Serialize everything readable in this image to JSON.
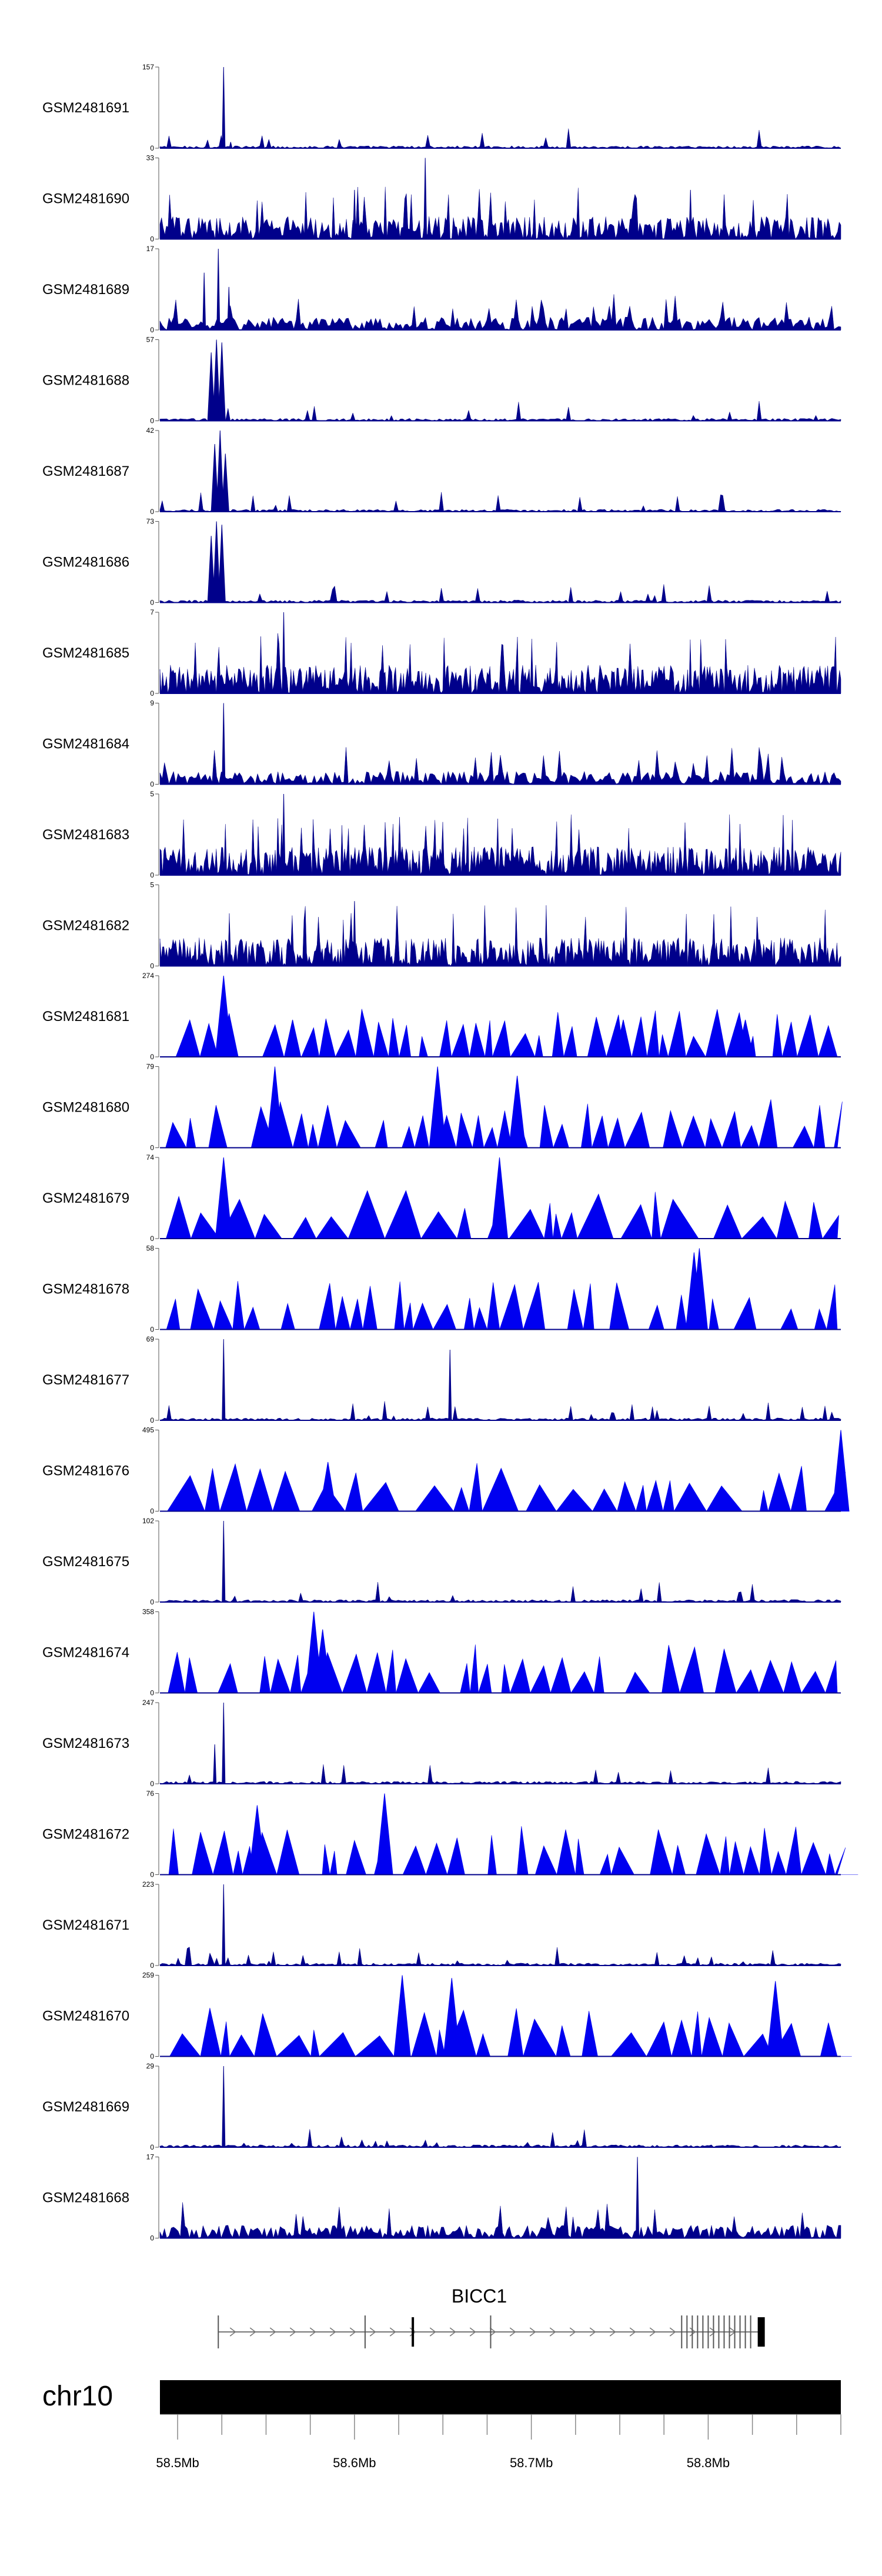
{
  "chart_data": {
    "type": "area",
    "title": "",
    "chromosome": "chr10",
    "gene": {
      "name": "BICC1",
      "strand": "+",
      "start_mb": 58.523,
      "end_mb": 58.83
    },
    "region_mb": [
      58.49,
      58.875
    ],
    "x_ticks": [
      "58.5Mb",
      "58.6Mb",
      "58.7Mb",
      "58.8Mb"
    ],
    "x_tick_values": [
      58.5,
      58.6,
      58.7,
      58.8
    ],
    "series": [
      {
        "name": "GSM2481691",
        "ymax": 157,
        "ymin": 0,
        "style": "sparse-peak",
        "peaks": [
          {
            "x": 58.526,
            "y": 157
          },
          {
            "x": 58.53,
            "y": 12
          }
        ]
      },
      {
        "name": "GSM2481690",
        "ymax": 33,
        "ymin": 0,
        "style": "dense-blocks",
        "peaks": [
          {
            "x": 58.64,
            "y": 33
          },
          {
            "x": 58.6,
            "y": 20
          },
          {
            "x": 58.79,
            "y": 20
          }
        ]
      },
      {
        "name": "GSM2481689",
        "ymax": 17,
        "ymin": 0,
        "style": "noisy",
        "peaks": [
          {
            "x": 58.523,
            "y": 17
          },
          {
            "x": 58.515,
            "y": 12
          },
          {
            "x": 58.529,
            "y": 9
          }
        ]
      },
      {
        "name": "GSM2481688",
        "ymax": 57,
        "ymin": 0,
        "style": "cluster",
        "peaks": [
          {
            "x": 58.522,
            "y": 57
          },
          {
            "x": 58.525,
            "y": 55
          },
          {
            "x": 58.519,
            "y": 48
          }
        ]
      },
      {
        "name": "GSM2481687",
        "ymax": 42,
        "ymin": 0,
        "style": "cluster",
        "peaks": [
          {
            "x": 58.524,
            "y": 42
          },
          {
            "x": 58.521,
            "y": 35
          },
          {
            "x": 58.527,
            "y": 30
          }
        ]
      },
      {
        "name": "GSM2481686",
        "ymax": 73,
        "ymin": 0,
        "style": "cluster",
        "peaks": [
          {
            "x": 58.522,
            "y": 73
          },
          {
            "x": 58.525,
            "y": 70
          },
          {
            "x": 58.519,
            "y": 60
          }
        ]
      },
      {
        "name": "GSM2481685",
        "ymax": 7,
        "ymin": 0,
        "style": "very-noisy",
        "peaks": [
          {
            "x": 58.56,
            "y": 7
          }
        ]
      },
      {
        "name": "GSM2481684",
        "ymax": 9,
        "ymin": 0,
        "style": "noisy",
        "peaks": [
          {
            "x": 58.526,
            "y": 9
          }
        ]
      },
      {
        "name": "GSM2481683",
        "ymax": 5,
        "ymin": 0,
        "style": "very-noisy",
        "peaks": [
          {
            "x": 58.56,
            "y": 5
          }
        ]
      },
      {
        "name": "GSM2481682",
        "ymax": 5,
        "ymin": 0,
        "style": "very-noisy",
        "peaks": [
          {
            "x": 58.6,
            "y": 4
          }
        ]
      },
      {
        "name": "GSM2481681",
        "ymax": 274,
        "ymin": 0,
        "style": "triangles",
        "peaks": [
          {
            "x": 58.526,
            "y": 274
          },
          {
            "x": 58.565,
            "y": 125
          },
          {
            "x": 58.752,
            "y": 125
          },
          {
            "x": 58.821,
            "y": 125
          }
        ]
      },
      {
        "name": "GSM2481680",
        "ymax": 79,
        "ymin": 0,
        "style": "triangles",
        "peaks": [
          {
            "x": 58.555,
            "y": 79
          },
          {
            "x": 58.647,
            "y": 79
          },
          {
            "x": 58.692,
            "y": 70
          }
        ]
      },
      {
        "name": "GSM2481679",
        "ymax": 74,
        "ymin": 0,
        "style": "triangles",
        "peaks": [
          {
            "x": 58.526,
            "y": 74
          },
          {
            "x": 58.682,
            "y": 74
          }
        ]
      },
      {
        "name": "GSM2481678",
        "ymax": 58,
        "ymin": 0,
        "style": "triangles",
        "peaks": [
          {
            "x": 58.795,
            "y": 58
          },
          {
            "x": 58.792,
            "y": 55
          }
        ]
      },
      {
        "name": "GSM2481677",
        "ymax": 69,
        "ymin": 0,
        "style": "sparse-peak",
        "peaks": [
          {
            "x": 58.526,
            "y": 69
          },
          {
            "x": 58.654,
            "y": 60
          }
        ]
      },
      {
        "name": "GSM2481676",
        "ymax": 495,
        "ymin": 0,
        "style": "triangles",
        "peaks": [
          {
            "x": 58.875,
            "y": 495
          },
          {
            "x": 58.585,
            "y": 300
          }
        ]
      },
      {
        "name": "GSM2481675",
        "ymax": 102,
        "ymin": 0,
        "style": "sparse-peak",
        "peaks": [
          {
            "x": 58.526,
            "y": 102
          }
        ]
      },
      {
        "name": "GSM2481674",
        "ymax": 358,
        "ymin": 0,
        "style": "triangles",
        "peaks": [
          {
            "x": 58.577,
            "y": 358
          },
          {
            "x": 58.582,
            "y": 280
          }
        ]
      },
      {
        "name": "GSM2481673",
        "ymax": 247,
        "ymin": 0,
        "style": "sparse-peak",
        "peaks": [
          {
            "x": 58.526,
            "y": 247
          },
          {
            "x": 58.521,
            "y": 120
          }
        ]
      },
      {
        "name": "GSM2481672",
        "ymax": 76,
        "ymin": 0,
        "style": "triangles",
        "peaks": [
          {
            "x": 58.617,
            "y": 76
          },
          {
            "x": 58.545,
            "y": 65
          }
        ]
      },
      {
        "name": "GSM2481671",
        "ymax": 223,
        "ymin": 0,
        "style": "sparse-peak",
        "peaks": [
          {
            "x": 58.526,
            "y": 223
          }
        ]
      },
      {
        "name": "GSM2481670",
        "ymax": 259,
        "ymin": 0,
        "style": "triangles",
        "peaks": [
          {
            "x": 58.627,
            "y": 259
          },
          {
            "x": 58.655,
            "y": 250
          },
          {
            "x": 58.838,
            "y": 240
          }
        ]
      },
      {
        "name": "GSM2481669",
        "ymax": 29,
        "ymin": 0,
        "style": "sparse-peak",
        "peaks": [
          {
            "x": 58.526,
            "y": 29
          }
        ]
      },
      {
        "name": "GSM2481668",
        "ymax": 17,
        "ymin": 0,
        "style": "noisy",
        "peaks": [
          {
            "x": 58.76,
            "y": 17
          }
        ]
      }
    ]
  }
}
